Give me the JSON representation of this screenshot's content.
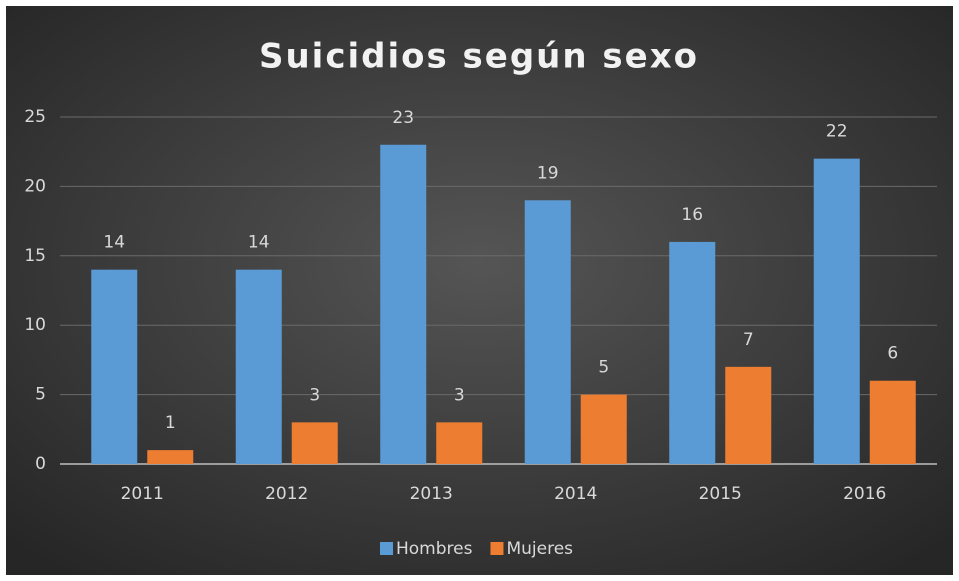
{
  "chart_data": {
    "type": "bar",
    "title": "Suicidios según sexo",
    "categories": [
      "2011",
      "2012",
      "2013",
      "2014",
      "2015",
      "2016"
    ],
    "series": [
      {
        "name": "Hombres",
        "color": "#5b9bd5",
        "values": [
          14,
          14,
          23,
          19,
          16,
          22
        ]
      },
      {
        "name": "Mujeres",
        "color": "#ed7d31",
        "values": [
          1,
          3,
          3,
          5,
          7,
          6
        ]
      }
    ],
    "ylim": [
      0,
      25
    ],
    "yticks": [
      0,
      5,
      10,
      15,
      20,
      25
    ],
    "grid": true,
    "legend": "bottom"
  }
}
